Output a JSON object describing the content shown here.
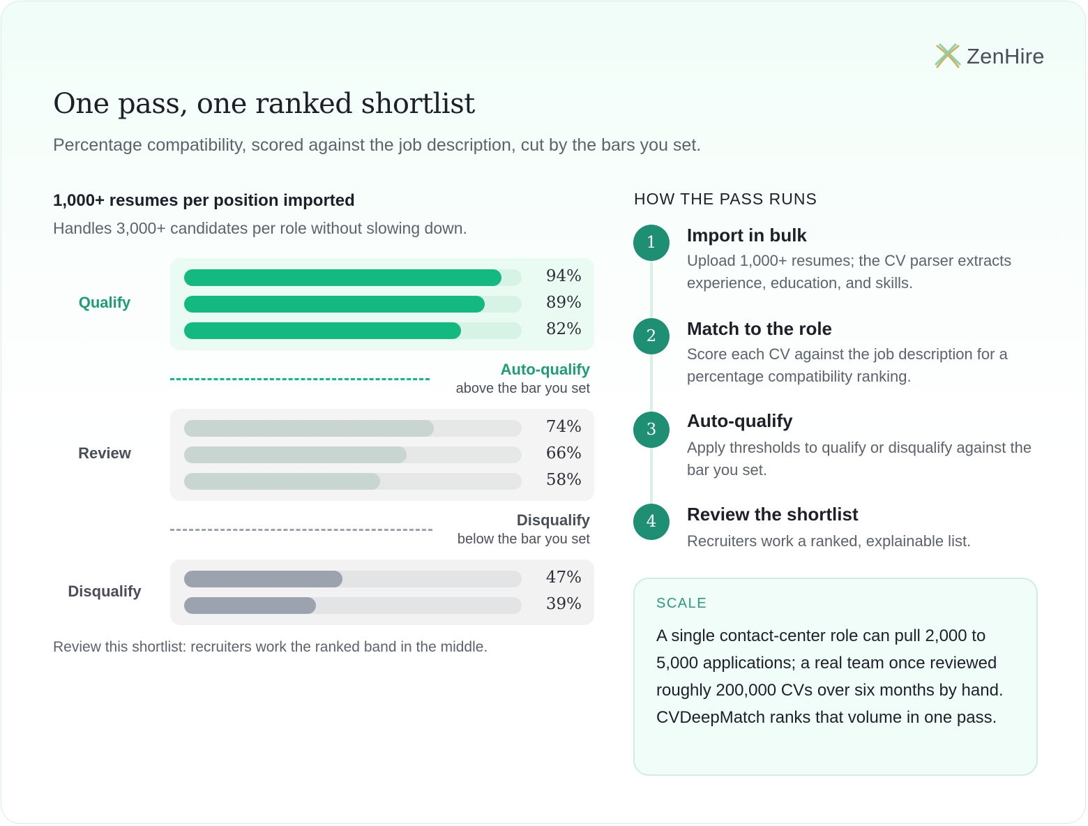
{
  "brand": {
    "name": "ZenHire",
    "icon": "zenhire-logo-icon"
  },
  "header": {
    "title": "One pass, one ranked shortlist",
    "subtitle": "Percentage compatibility, scored against the job description, cut by the bars you set."
  },
  "left": {
    "title": "1,000+ resumes per position imported",
    "subtitle": "Handles 3,000+ candidates per role without slowing down.",
    "bands": [
      {
        "label": "Qualify",
        "values": [
          94,
          89,
          82
        ],
        "labels": [
          "94%",
          "89%",
          "82%"
        ]
      },
      {
        "label": "Review",
        "values": [
          74,
          66,
          58
        ],
        "labels": [
          "74%",
          "66%",
          "58%"
        ]
      },
      {
        "label": "Disqualify",
        "values": [
          47,
          39
        ],
        "labels": [
          "47%",
          "39%"
        ]
      }
    ],
    "thresholds": [
      {
        "title": "Auto-qualify",
        "sub": "above the bar you set"
      },
      {
        "title": "Disqualify",
        "sub": "below the bar you set"
      }
    ],
    "footnote": "Review this shortlist: recruiters work the ranked band in the middle."
  },
  "right": {
    "title": "HOW THE PASS RUNS",
    "steps": [
      {
        "num": "1",
        "title": "Import in bulk",
        "desc": "Upload 1,000+ resumes; the CV parser extracts experience, education, and skills."
      },
      {
        "num": "2",
        "title": "Match to the role",
        "desc": "Score each CV against the job description for a percentage compatibility ranking."
      },
      {
        "num": "3",
        "title": "Auto-qualify",
        "desc": "Apply thresholds to qualify or disqualify against the bar you set."
      },
      {
        "num": "4",
        "title": "Review the shortlist",
        "desc": "Recruiters work a ranked, explainable list."
      }
    ],
    "scale": {
      "label": "SCALE",
      "text": "A single contact-center role can pull 2,000 to 5,000 applications; a real team once reviewed roughly 200,000 CVs over six months by hand. CVDeepMatch ranks that volume in one pass."
    }
  },
  "colors": {
    "qualify_fill": "#14b981",
    "qualify_track": "#d6f3e6",
    "review_fill": "#c9d5d0",
    "review_track": "#e6e7e7",
    "disq_fill": "#9ca3af",
    "disq_track": "#e3e4e6",
    "accent": "#1f8f73"
  }
}
